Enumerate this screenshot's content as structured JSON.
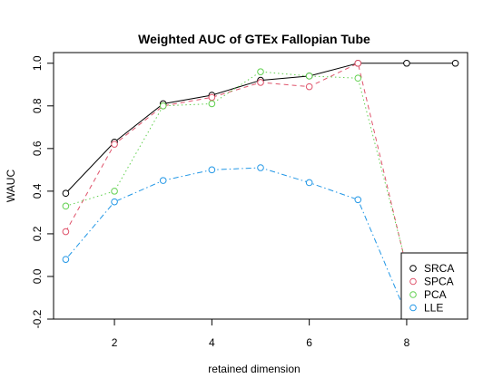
{
  "chart_data": {
    "type": "line",
    "title": "Weighted AUC of GTEx Fallopian Tube",
    "xlabel": "retained dimension",
    "ylabel": "WAUC",
    "xlim": [
      0.75,
      9.25
    ],
    "ylim": [
      -0.2,
      1.05
    ],
    "x_ticks": [
      2,
      4,
      6,
      8
    ],
    "y_ticks": [
      -0.2,
      0.0,
      0.2,
      0.4,
      0.6,
      0.8,
      1.0
    ],
    "x_tick_labels": [
      "2",
      "4",
      "6",
      "8"
    ],
    "y_tick_labels": [
      "-0.2",
      "0.0",
      "0.2",
      "0.4",
      "0.6",
      "0.8",
      "1.0"
    ],
    "grid": false,
    "legend_position": "bottom-right",
    "series": [
      {
        "name": "SRCA",
        "color": "#000000",
        "line_style": "solid",
        "x": [
          1,
          2,
          3,
          4,
          5,
          6,
          7,
          8,
          9
        ],
        "y": [
          0.39,
          0.63,
          0.81,
          0.85,
          0.92,
          0.94,
          1.0,
          1.0,
          1.0
        ]
      },
      {
        "name": "SPCA",
        "color": "#DF536B",
        "line_style": "dashed",
        "x": [
          1,
          2,
          3,
          4,
          5,
          6,
          7,
          8
        ],
        "y": [
          0.21,
          0.62,
          0.8,
          0.84,
          0.91,
          0.89,
          1.0,
          0.04
        ]
      },
      {
        "name": "PCA",
        "color": "#61D04F",
        "line_style": "dotted",
        "x": [
          1,
          2,
          3,
          4,
          5,
          6,
          7,
          8
        ],
        "y": [
          0.33,
          0.4,
          0.8,
          0.81,
          0.96,
          0.94,
          0.93,
          0.05
        ]
      },
      {
        "name": "LLE",
        "color": "#2297E6",
        "line_style": "dotdash",
        "x": [
          1,
          2,
          3,
          4,
          5,
          6,
          7,
          8
        ],
        "y": [
          0.08,
          0.35,
          0.45,
          0.5,
          0.51,
          0.44,
          0.36,
          -0.18
        ]
      }
    ]
  }
}
